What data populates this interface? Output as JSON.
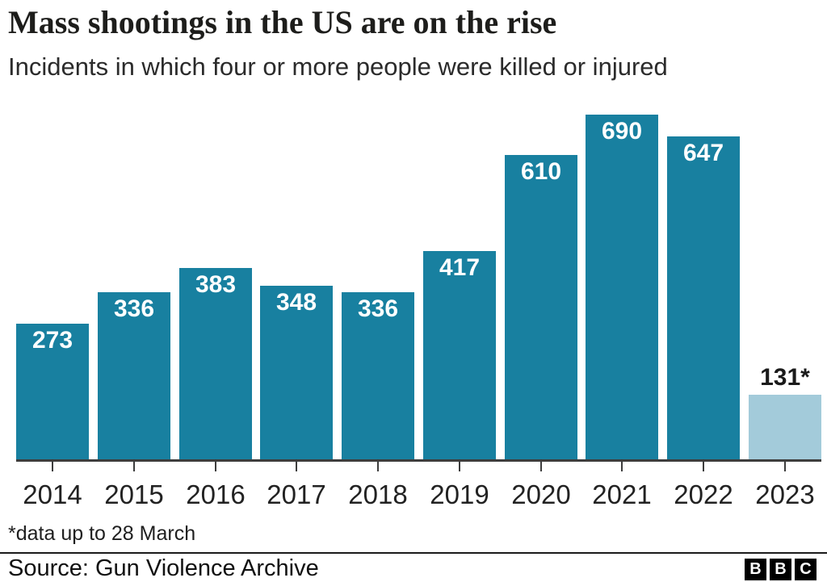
{
  "header": {
    "title": "Mass shootings in the US are on the rise",
    "subtitle": "Incidents in which four or more people were killed or injured"
  },
  "chart_data": {
    "type": "bar",
    "title": "Mass shootings in the US are on the rise",
    "subtitle": "Incidents in which four or more people were killed or injured",
    "categories": [
      "2014",
      "2015",
      "2016",
      "2017",
      "2018",
      "2019",
      "2020",
      "2021",
      "2022",
      "2023"
    ],
    "values": [
      273,
      336,
      383,
      348,
      336,
      417,
      610,
      690,
      647,
      131
    ],
    "bar_labels": [
      "273",
      "336",
      "383",
      "348",
      "336",
      "417",
      "610",
      "690",
      "647",
      "131*"
    ],
    "ylim": [
      0,
      690
    ],
    "grid": false,
    "legend": "none",
    "xlabel": "",
    "ylabel": "",
    "bar_color": "#1880A0",
    "highlight": {
      "index": 9,
      "color": "#A3CBDA",
      "label_outside": true,
      "label_color": "#1a1a1a",
      "note": "partial-year bar shown in light blue with label above bar"
    },
    "footnote": "*data up to 28 March"
  },
  "footer": {
    "footnote": "*data up to 28 March",
    "source": "Source: Gun Violence Archive",
    "logo_blocks": [
      "B",
      "B",
      "C"
    ]
  },
  "colors": {
    "bar": "#1880A0",
    "bar_partial": "#A3CBDA",
    "axis": "#3d3d3d",
    "title": "#1d1d1b",
    "text": "#222222",
    "background": "#ffffff"
  }
}
